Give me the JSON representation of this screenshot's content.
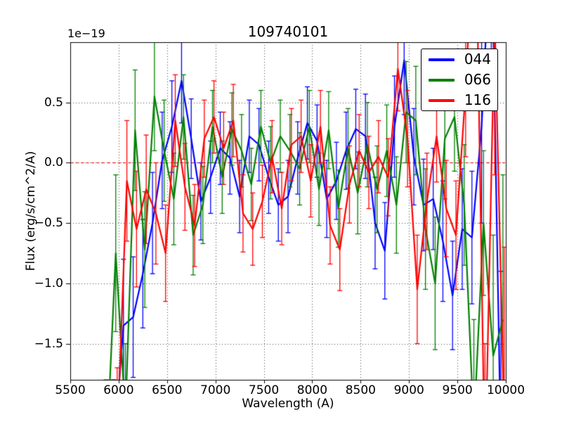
{
  "figure": {
    "title": "109740101",
    "offset_label": "1e−19",
    "background": "#ffffff"
  },
  "axes": {
    "xlabel": "Wavelength (A)",
    "ylabel": "Flux (erg/s/cm^2/A)",
    "xtick_labels": [
      "5500",
      "6000",
      "6500",
      "7000",
      "7500",
      "8000",
      "8500",
      "9000",
      "9500",
      "10000"
    ],
    "ytick_labels": [
      "0.5",
      "0.0",
      "−0.5",
      "−1.0",
      "−1.5"
    ],
    "frame_color": "#000000",
    "grid_color": "#444444",
    "zero_line_color": "#dd0000"
  },
  "legend": {
    "entries": [
      {
        "label": "044",
        "color": "#0000ff"
      },
      {
        "label": "066",
        "color": "#008000"
      },
      {
        "label": "116",
        "color": "#ff0000"
      }
    ]
  },
  "chart_data": {
    "type": "line",
    "title": "109740101",
    "xlabel": "Wavelength (A)",
    "ylabel": "Flux (erg/s/cm^2/A)",
    "y_scale_factor": "1e-19",
    "xlim": [
      5500,
      10000
    ],
    "ylim": [
      -1.8,
      1.0
    ],
    "xticks": [
      5500,
      6000,
      6500,
      7000,
      7500,
      8000,
      8500,
      9000,
      9500,
      10000
    ],
    "yticks": [
      0.5,
      0.0,
      -0.5,
      -1.0,
      -1.5
    ],
    "grid": true,
    "grid_style": "dotted",
    "zero_line": {
      "y": 0,
      "color": "#dd0000",
      "style": "dashed"
    },
    "legend_position": "upper right",
    "error_bars": true,
    "series": [
      {
        "name": "044",
        "color": "#0000ff",
        "x": [
          5950,
          6050,
          6150,
          6250,
          6350,
          6450,
          6550,
          6650,
          6750,
          6850,
          6950,
          7050,
          7150,
          7250,
          7350,
          7450,
          7550,
          7650,
          7750,
          7850,
          7950,
          8050,
          8150,
          8250,
          8350,
          8450,
          8550,
          8650,
          8750,
          8850,
          8950,
          9050,
          9150,
          9250,
          9350,
          9450,
          9550,
          9650,
          9750,
          9850,
          9950
        ],
        "y": [
          -2.4,
          -1.35,
          -1.28,
          -0.92,
          -0.5,
          0.02,
          0.3,
          0.68,
          0.2,
          -0.32,
          -0.12,
          0.12,
          0.04,
          -0.28,
          0.22,
          0.15,
          -0.12,
          -0.35,
          -0.28,
          0.04,
          0.33,
          0.18,
          -0.3,
          -0.15,
          0.1,
          0.28,
          0.22,
          -0.5,
          -0.73,
          0.3,
          0.85,
          0.05,
          -0.35,
          -0.3,
          -0.65,
          -1.1,
          -0.55,
          -0.62,
          0.3,
          2.0,
          -2.4
        ],
        "yerr": [
          0.6,
          0.55,
          0.5,
          0.45,
          0.42,
          0.4,
          0.38,
          0.35,
          0.33,
          0.32,
          0.3,
          0.3,
          0.3,
          0.3,
          0.3,
          0.3,
          0.3,
          0.3,
          0.3,
          0.3,
          0.3,
          0.3,
          0.32,
          0.32,
          0.32,
          0.33,
          0.35,
          0.38,
          0.4,
          0.42,
          0.45,
          0.4,
          0.38,
          0.42,
          0.5,
          0.45,
          0.5,
          0.55,
          0.8,
          1.2,
          1.5
        ]
      },
      {
        "name": "066",
        "color": "#008000",
        "x": [
          5870,
          5970,
          6070,
          6170,
          6270,
          6370,
          6470,
          6570,
          6670,
          6770,
          6870,
          6970,
          7070,
          7170,
          7270,
          7370,
          7470,
          7570,
          7670,
          7770,
          7870,
          7970,
          8070,
          8170,
          8270,
          8370,
          8470,
          8570,
          8670,
          8770,
          8870,
          8970,
          9070,
          9170,
          9270,
          9370,
          9470,
          9570,
          9670,
          9770,
          9870,
          9970
        ],
        "y": [
          -2.5,
          -0.75,
          -2.1,
          0.27,
          -0.72,
          0.55,
          0.1,
          -0.3,
          0.38,
          -0.6,
          -0.35,
          0.3,
          -0.12,
          0.28,
          0.1,
          -0.18,
          0.3,
          0.0,
          0.22,
          0.1,
          -0.05,
          0.3,
          -0.22,
          0.27,
          -0.38,
          0.12,
          -0.25,
          0.15,
          -0.22,
          0.1,
          -0.35,
          0.42,
          0.35,
          -0.55,
          -1.0,
          0.2,
          0.38,
          -0.35,
          -2.2,
          -0.5,
          -1.6,
          -1.3
        ],
        "yerr": [
          0.7,
          0.65,
          0.6,
          0.5,
          0.48,
          0.45,
          0.42,
          0.38,
          0.35,
          0.33,
          0.32,
          0.3,
          0.3,
          0.3,
          0.3,
          0.3,
          0.3,
          0.3,
          0.3,
          0.3,
          0.3,
          0.3,
          0.3,
          0.32,
          0.32,
          0.33,
          0.34,
          0.35,
          0.36,
          0.38,
          0.4,
          0.42,
          0.45,
          0.5,
          0.55,
          0.5,
          0.45,
          0.5,
          0.9,
          0.6,
          1.0,
          1.2
        ]
      },
      {
        "name": "116",
        "color": "#ff0000",
        "x": [
          5985,
          6085,
          6185,
          6285,
          6385,
          6485,
          6585,
          6685,
          6785,
          6885,
          6985,
          7085,
          7185,
          7285,
          7385,
          7485,
          7585,
          7685,
          7785,
          7885,
          7985,
          8085,
          8185,
          8285,
          8385,
          8485,
          8585,
          8685,
          8785,
          8885,
          8985,
          9085,
          9185,
          9285,
          9385,
          9485,
          9585,
          9685,
          9785,
          9885,
          9985
        ],
        "y": [
          -2.3,
          -0.15,
          -0.55,
          -0.22,
          -0.42,
          -0.75,
          0.35,
          -0.2,
          -0.52,
          0.2,
          0.38,
          0.12,
          0.35,
          -0.42,
          -0.55,
          -0.32,
          0.05,
          -0.38,
          0.15,
          0.22,
          -0.15,
          0.3,
          -0.52,
          -0.72,
          -0.18,
          0.1,
          -0.08,
          0.05,
          -0.12,
          0.78,
          0.2,
          -1.05,
          -0.32,
          0.22,
          -0.38,
          -0.6,
          0.6,
          2.3,
          -2.6,
          1.2,
          -2.2
        ],
        "yerr": [
          0.6,
          0.5,
          0.48,
          0.45,
          0.42,
          0.4,
          0.38,
          0.36,
          0.34,
          0.32,
          0.3,
          0.3,
          0.3,
          0.32,
          0.3,
          0.3,
          0.3,
          0.3,
          0.3,
          0.3,
          0.3,
          0.3,
          0.32,
          0.34,
          0.32,
          0.3,
          0.3,
          0.3,
          0.32,
          0.35,
          0.4,
          0.45,
          0.4,
          0.38,
          0.4,
          0.45,
          0.55,
          0.9,
          1.1,
          1.3,
          1.5
        ]
      }
    ]
  }
}
